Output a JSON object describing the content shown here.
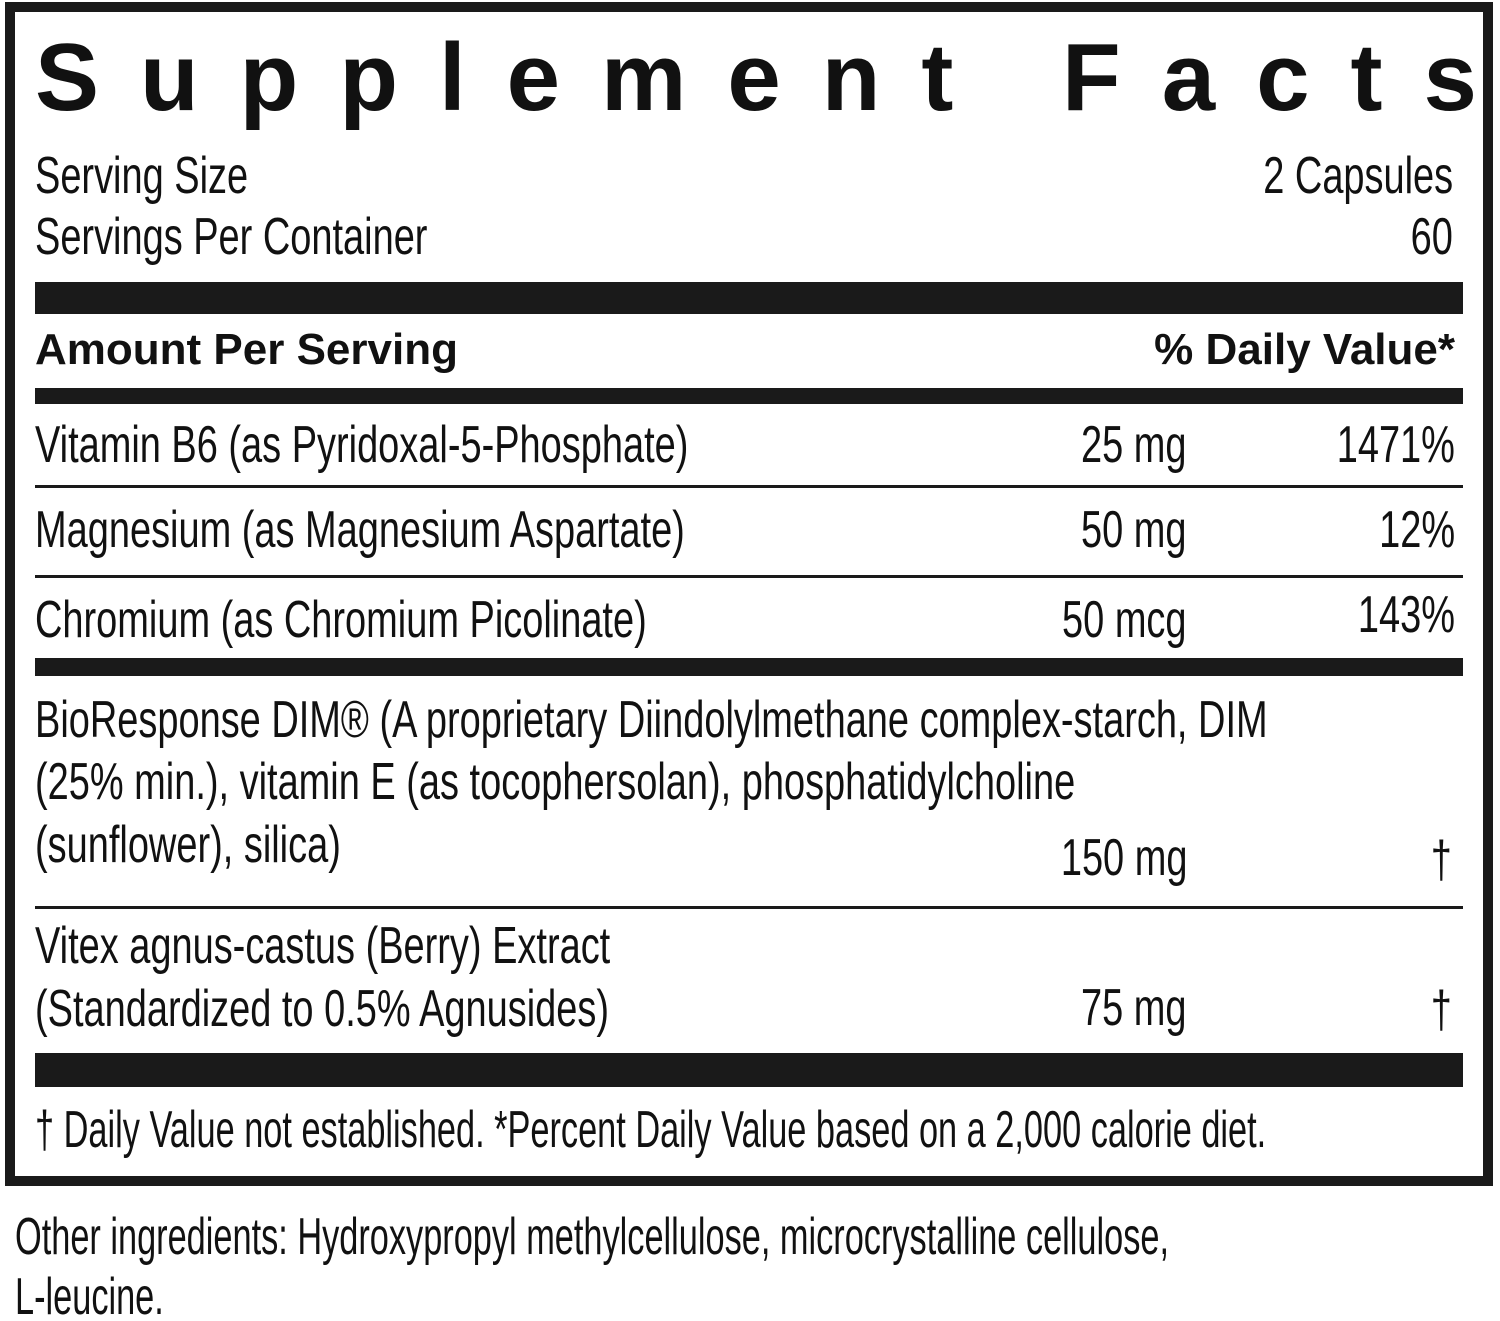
{
  "title": "Supplement Facts",
  "serving": {
    "label": "Serving Size",
    "value": "2 Capsules"
  },
  "servings_per_container": {
    "label": "Servings Per Container",
    "value": "60"
  },
  "header": {
    "amount": "Amount Per Serving",
    "daily_value": "% Daily Value*"
  },
  "rows": [
    {
      "name_lines": [
        "Vitamin B6 (as Pyridoxal-5-Phosphate)"
      ],
      "amount": "25 mg",
      "daily_value": "1471%"
    },
    {
      "name_lines": [
        "Magnesium (as Magnesium Aspartate)"
      ],
      "amount": "50 mg",
      "daily_value": "12%"
    },
    {
      "name_lines": [
        "Chromium (as Chromium Picolinate)"
      ],
      "amount": "50 mcg",
      "daily_value": "143%"
    },
    {
      "name_lines": [
        "BioResponse DIM® (A proprietary Diindolylmethane complex-starch, DIM",
        "(25% min.), vitamin E (as tocophersolan), phosphatidylcholine",
        "(sunflower), silica)"
      ],
      "amount": "150 mg",
      "daily_value": "†"
    },
    {
      "name_lines": [
        "Vitex agnus-castus (Berry) Extract",
        "(Standardized to 0.5% Agnusides)"
      ],
      "amount": "75 mg",
      "daily_value": "†"
    }
  ],
  "footnote": "† Daily Value not established. *Percent Daily Value based on a 2,000 calorie diet.",
  "other_ingredients": [
    "Other ingredients: Hydroxypropyl methylcellulose, microcrystalline cellulose,",
    "L-leucine."
  ]
}
